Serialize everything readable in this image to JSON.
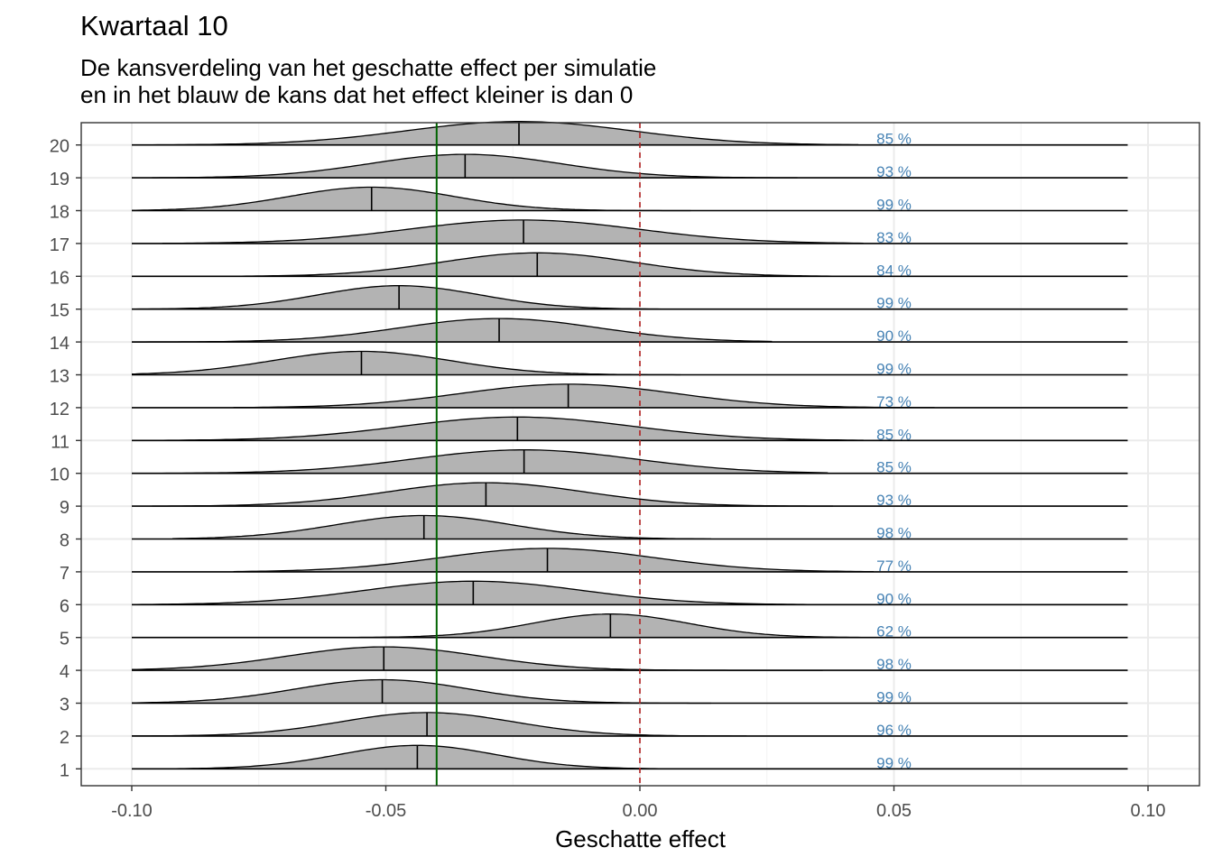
{
  "chart_data": {
    "type": "ridgeline",
    "title": "Kwartaal 10",
    "subtitle_lines": [
      "De kansverdeling van het geschatte effect per simulatie",
      "en in het blauw de kans dat het effect kleiner is dan 0"
    ],
    "xlabel": "Geschatte effect",
    "ylabel": "",
    "xlim": [
      -0.11,
      0.105
    ],
    "x_ticks": [
      -0.1,
      -0.05,
      0.0,
      0.05,
      0.1
    ],
    "x_tick_labels": [
      "-0.10",
      "-0.05",
      "0.00",
      "0.05",
      "0.10"
    ],
    "y_ticks": [
      1,
      2,
      3,
      4,
      5,
      6,
      7,
      8,
      9,
      10,
      11,
      12,
      13,
      14,
      15,
      16,
      17,
      18,
      19,
      20
    ],
    "y_tick_labels": [
      "1",
      "2",
      "3",
      "4",
      "5",
      "6",
      "7",
      "8",
      "9",
      "10",
      "11",
      "12",
      "13",
      "14",
      "15",
      "16",
      "17",
      "18",
      "19",
      "20"
    ],
    "reference_lines": [
      {
        "name": "true-effect",
        "x": -0.04,
        "color": "#006400",
        "style": "solid"
      },
      {
        "name": "zero",
        "x": 0.0,
        "color": "#b22222",
        "style": "dashed"
      }
    ],
    "baseline_range": [
      -0.1,
      0.096
    ],
    "simulations": [
      {
        "sim": 1,
        "median": -0.0438,
        "sd": 0.0155,
        "range": [
          -0.1,
          0.021
        ],
        "pct": "99 %"
      },
      {
        "sim": 2,
        "median": -0.0419,
        "sd": 0.017,
        "range": [
          -0.1,
          0.021
        ],
        "pct": "96 %"
      },
      {
        "sim": 3,
        "median": -0.0507,
        "sd": 0.017,
        "range": [
          -0.1,
          0.014
        ],
        "pct": "99 %"
      },
      {
        "sim": 4,
        "median": -0.0504,
        "sd": 0.019,
        "range": [
          -0.1,
          0.036
        ],
        "pct": "98 %"
      },
      {
        "sim": 5,
        "median": -0.0058,
        "sd": 0.0153,
        "range": [
          -0.057,
          0.045
        ],
        "pct": "62 %"
      },
      {
        "sim": 6,
        "median": -0.0328,
        "sd": 0.0215,
        "range": [
          -0.1,
          0.04
        ],
        "pct": "90 %"
      },
      {
        "sim": 7,
        "median": -0.0182,
        "sd": 0.021,
        "range": [
          -0.08,
          0.046
        ],
        "pct": "77 %"
      },
      {
        "sim": 8,
        "median": -0.0425,
        "sd": 0.0173,
        "range": [
          -0.092,
          0.014
        ],
        "pct": "98 %"
      },
      {
        "sim": 9,
        "median": -0.0303,
        "sd": 0.0195,
        "range": [
          -0.096,
          0.038
        ],
        "pct": "93 %"
      },
      {
        "sim": 10,
        "median": -0.0228,
        "sd": 0.022,
        "range": [
          -0.1,
          0.037
        ],
        "pct": "85 %"
      },
      {
        "sim": 11,
        "median": -0.0241,
        "sd": 0.0227,
        "range": [
          -0.1,
          0.044
        ],
        "pct": "85 %"
      },
      {
        "sim": 12,
        "median": -0.0141,
        "sd": 0.0211,
        "range": [
          -0.08,
          0.058
        ],
        "pct": "73 %"
      },
      {
        "sim": 13,
        "median": -0.0548,
        "sd": 0.0175,
        "range": [
          -0.1,
          0.008
        ],
        "pct": "99 %"
      },
      {
        "sim": 14,
        "median": -0.0277,
        "sd": 0.0195,
        "range": [
          -0.1,
          0.026
        ],
        "pct": "90 %"
      },
      {
        "sim": 15,
        "median": -0.0474,
        "sd": 0.016,
        "range": [
          -0.1,
          0.008
        ],
        "pct": "99 %"
      },
      {
        "sim": 16,
        "median": -0.0202,
        "sd": 0.0188,
        "range": [
          -0.1,
          0.044
        ],
        "pct": "84 %"
      },
      {
        "sim": 17,
        "median": -0.0229,
        "sd": 0.0227,
        "range": [
          -0.094,
          0.044
        ],
        "pct": "83 %"
      },
      {
        "sim": 18,
        "median": -0.0528,
        "sd": 0.0162,
        "range": [
          -0.1,
          0.01
        ],
        "pct": "99 %"
      },
      {
        "sim": 19,
        "median": -0.0344,
        "sd": 0.0187,
        "range": [
          -0.096,
          0.031
        ],
        "pct": "93 %"
      },
      {
        "sim": 20,
        "median": -0.0238,
        "sd": 0.0222,
        "range": [
          -0.1,
          0.043
        ],
        "pct": "85 %"
      }
    ],
    "pct_label_x": 0.05,
    "grid": true,
    "colors": {
      "density_fill": "#b3b3b3",
      "line": "#000000",
      "grid_major": "#ebebeb",
      "grid_minor": "#f5f5f5",
      "panel_border": "#333333",
      "pct_text": "#4682b4"
    }
  }
}
